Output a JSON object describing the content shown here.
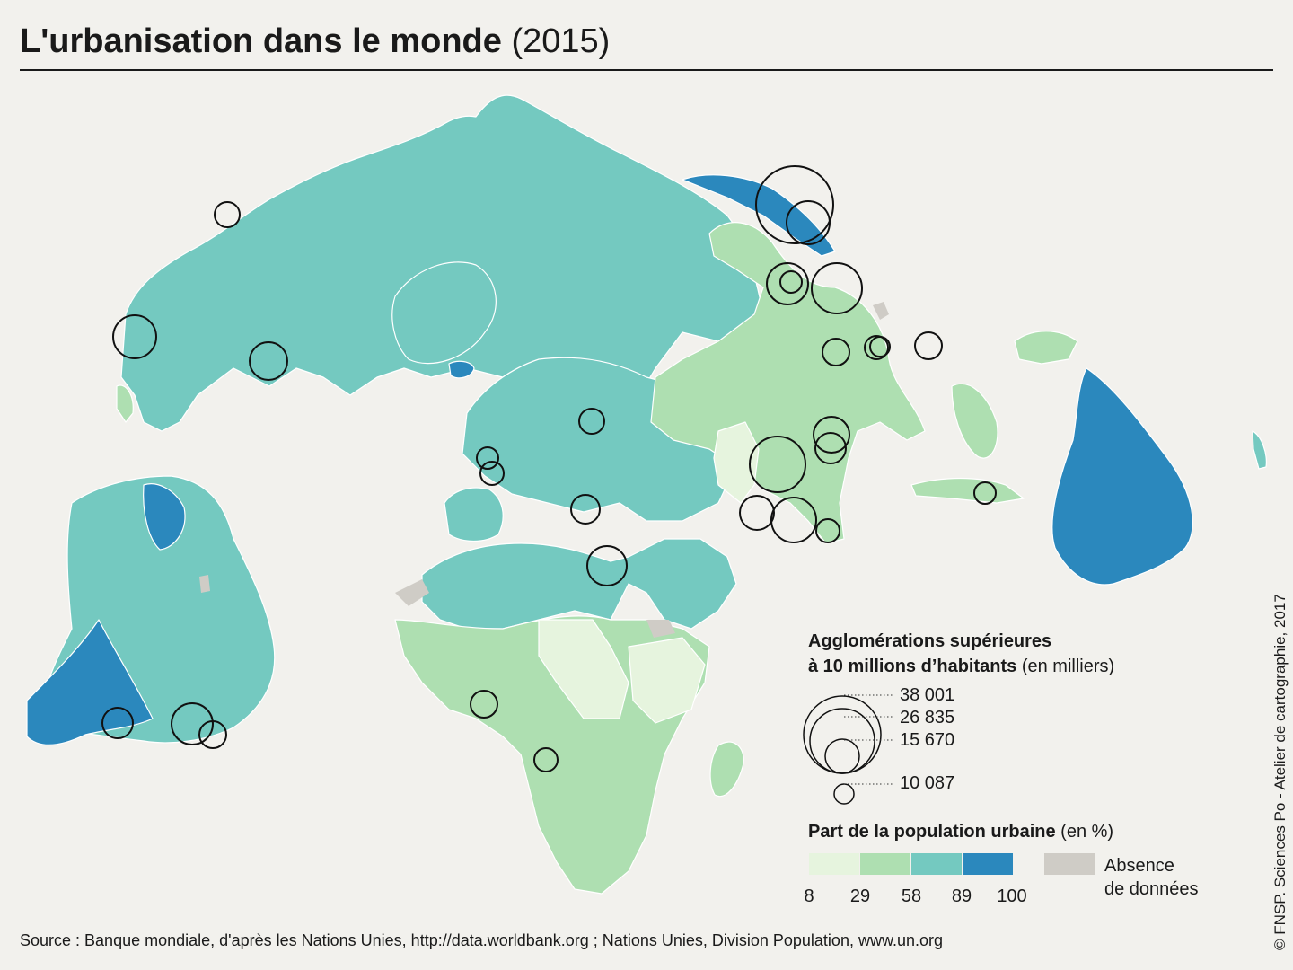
{
  "title": {
    "main": "L'urbanisation dans le monde",
    "year": "(2015)"
  },
  "colors": {
    "background": "#f2f1ed",
    "class_8_29": "#e6f4de",
    "class_29_58": "#aedfb1",
    "class_58_89": "#74c9c0",
    "class_89_100": "#2b88bd",
    "no_data": "#cfccc6",
    "border": "#ffffff",
    "circle_stroke": "#111111"
  },
  "circle_legend": {
    "title_bold_1": "Agglomérations supérieures",
    "title_bold_2": "à 10 millions d’habitants",
    "title_unit": "(en milliers)",
    "values": [
      "38 001",
      "26 835",
      "15 670",
      "10 087"
    ],
    "values_numeric": [
      38001,
      26835,
      15670,
      10087
    ]
  },
  "urban_legend": {
    "title_bold": "Part de la population urbaine",
    "title_unit": "(en %)",
    "breaks": [
      "8",
      "29",
      "58",
      "89",
      "100"
    ],
    "no_data_line1": "Absence",
    "no_data_line2": "de données"
  },
  "source": "Source : Banque mondiale, d'après les Nations Unies, http://data.worldbank.org ; Nations Unies, Division Population, www.un.org",
  "credit": "© FNSP. Sciences Po - Atelier de cartographie, 2017"
}
